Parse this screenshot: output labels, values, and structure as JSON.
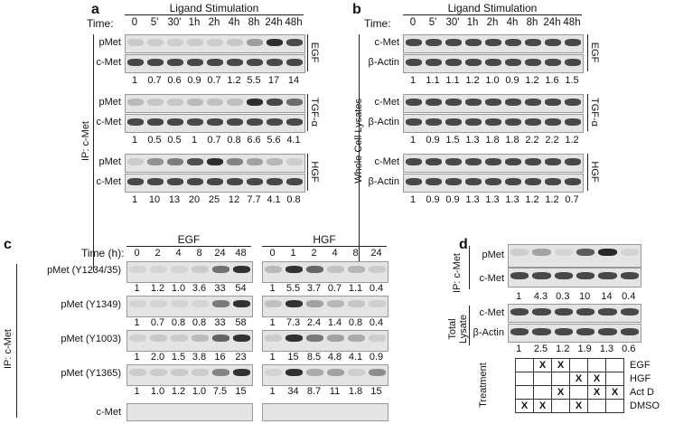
{
  "panel_a": {
    "letter": "a",
    "title": "Ligand Stimulation",
    "time_label": "Time:",
    "times": [
      "0",
      "5'",
      "30'",
      "1h",
      "2h",
      "4h",
      "8h",
      "24h",
      "48h"
    ],
    "side_label": "IP: c-Met",
    "groups": [
      {
        "ligand": "EGF",
        "rows": [
          "pMet",
          "c-Met"
        ],
        "values": [
          "1",
          "0.7",
          "0.6",
          "0.9",
          "0.7",
          "1.2",
          "5.5",
          "17",
          "14"
        ]
      },
      {
        "ligand": "TGF-α",
        "rows": [
          "pMet",
          "c-Met"
        ],
        "values": [
          "1",
          "0.5",
          "0.5",
          "1",
          "0.7",
          "0.8",
          "6.6",
          "5.6",
          "4.1"
        ]
      },
      {
        "ligand": "HGF",
        "rows": [
          "pMet",
          "c-Met"
        ],
        "values": [
          "1",
          "10",
          "13",
          "20",
          "25",
          "12",
          "7.7",
          "4.1",
          "0.8"
        ]
      }
    ]
  },
  "panel_b": {
    "letter": "b",
    "title": "Ligand Stimulation",
    "time_label": "Time:",
    "times": [
      "0",
      "5'",
      "30'",
      "1h",
      "2h",
      "4h",
      "8h",
      "24h",
      "48h"
    ],
    "side_label": "Whole Cell Lysates",
    "groups": [
      {
        "ligand": "EGF",
        "rows": [
          "c-Met",
          "β-Actin"
        ],
        "values": [
          "1",
          "1.1",
          "1.1",
          "1.2",
          "1.0",
          "0.9",
          "1.2",
          "1.6",
          "1.5"
        ]
      },
      {
        "ligand": "TGF-α",
        "rows": [
          "c-Met",
          "β-Actin"
        ],
        "values": [
          "1",
          "0.9",
          "1.5",
          "1.3",
          "1.8",
          "1.8",
          "2.2",
          "2.2",
          "1.2"
        ]
      },
      {
        "ligand": "HGF",
        "rows": [
          "c-Met",
          "β-Actin"
        ],
        "values": [
          "1",
          "0.9",
          "0.9",
          "1.3",
          "1.3",
          "1.3",
          "1.2",
          "1.2",
          "0.7"
        ]
      }
    ]
  },
  "panel_c": {
    "letter": "c",
    "time_label": "Time (h):",
    "side_label": "IP: c-Met",
    "egf": {
      "label": "EGF",
      "times": [
        "0",
        "2",
        "4",
        "8",
        "24",
        "48"
      ]
    },
    "hgf": {
      "label": "HGF",
      "times": [
        "0",
        "1",
        "2",
        "4",
        "8",
        "24"
      ]
    },
    "rows": [
      {
        "label": "pMet (Y1234/35)",
        "egf": [
          "1",
          "1.2",
          "1.0",
          "3.6",
          "33",
          "54"
        ],
        "hgf": [
          "1",
          "5.5",
          "3.7",
          "0.7",
          "1.1",
          "0.4"
        ]
      },
      {
        "label": "pMet (Y1349)",
        "egf": [
          "1",
          "0.7",
          "0.8",
          "0.8",
          "33",
          "58"
        ],
        "hgf": [
          "1",
          "7.3",
          "2.4",
          "1.4",
          "0.8",
          "0.4"
        ]
      },
      {
        "label": "pMet (Y1003)",
        "egf": [
          "1",
          "2.0",
          "1.5",
          "3.8",
          "16",
          "23"
        ],
        "hgf": [
          "1",
          "15",
          "8.5",
          "4.8",
          "4.1",
          "0.9"
        ]
      },
      {
        "label": "pMet (Y1365)",
        "egf": [
          "1",
          "1.0",
          "1.2",
          "1.0",
          "7.5",
          "15"
        ],
        "hgf": [
          "1",
          "34",
          "8.7",
          "11",
          "1.8",
          "15"
        ]
      }
    ],
    "bottom_row": "c-Met"
  },
  "panel_d": {
    "letter": "d",
    "ip_label": "IP: c-Met",
    "ip_rows": [
      "pMet",
      "c-Met"
    ],
    "ip_values": [
      "1",
      "4.3",
      "0.3",
      "10",
      "14",
      "0.4"
    ],
    "lysate_label": "Total Lysate",
    "lysate_rows": [
      "c-Met",
      "β-Actin"
    ],
    "lysate_values": [
      "1",
      "2.5",
      "1.2",
      "1.9",
      "1.3",
      "0.6"
    ],
    "treatment_label": "Treatment",
    "treatments": [
      {
        "name": "EGF",
        "marks": [
          "",
          "X",
          "X",
          "",
          "",
          ""
        ]
      },
      {
        "name": "HGF",
        "marks": [
          "",
          "",
          "",
          "X",
          "X",
          ""
        ]
      },
      {
        "name": "Act D",
        "marks": [
          "",
          "",
          "X",
          "",
          "X",
          "X"
        ]
      },
      {
        "name": "DMSO",
        "marks": [
          "X",
          "X",
          "",
          "X",
          "",
          ""
        ]
      }
    ]
  }
}
